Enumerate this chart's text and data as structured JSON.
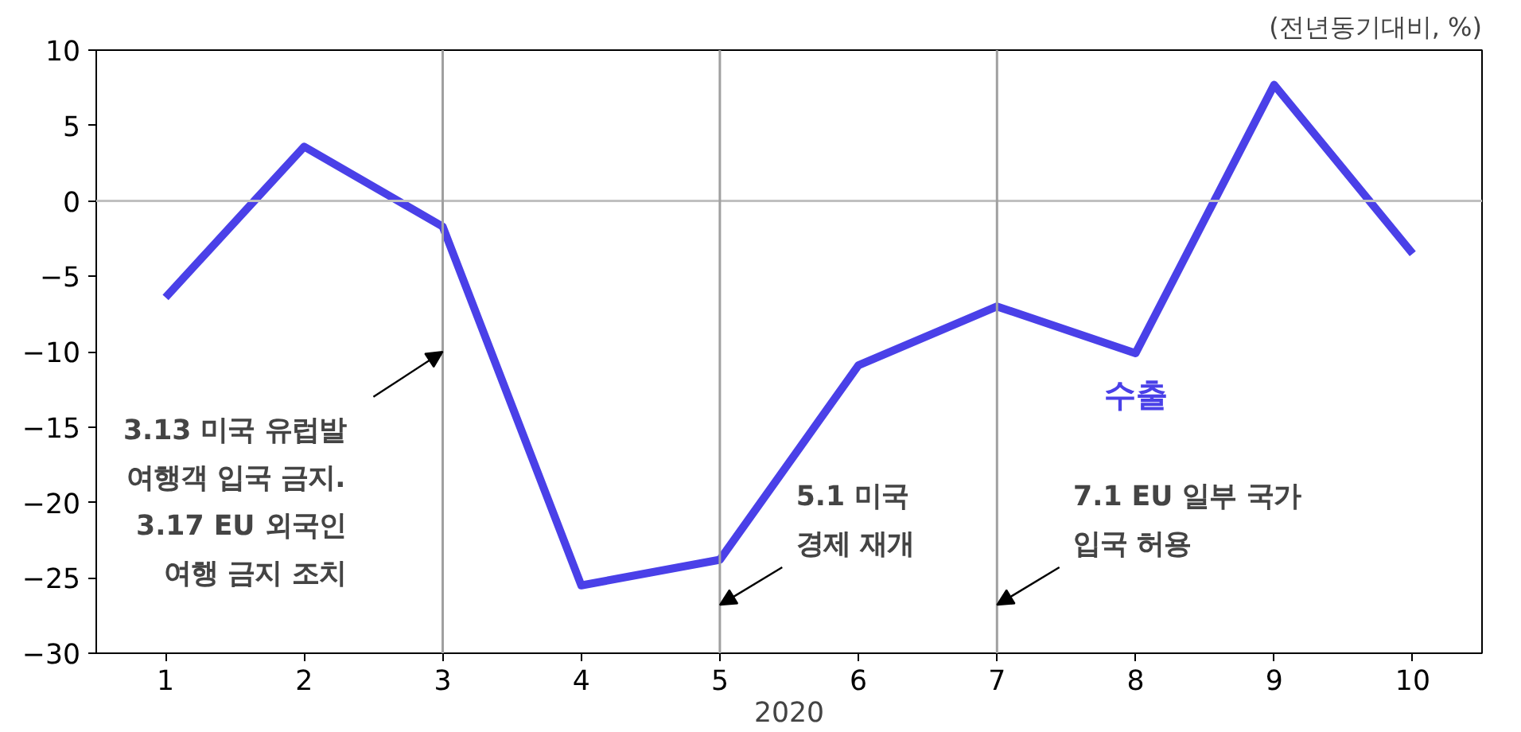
{
  "chart_data": {
    "type": "line",
    "xlabel": "2020",
    "x": [
      1,
      2,
      3,
      4,
      5,
      6,
      7,
      8,
      9,
      10
    ],
    "xlim": [
      0.5,
      10.5
    ],
    "xticks": [
      1,
      2,
      3,
      4,
      5,
      6,
      7,
      8,
      9,
      10
    ],
    "ylim": [
      -30,
      10
    ],
    "yticks": [
      -30,
      -25,
      -20,
      -15,
      -10,
      -5,
      0,
      5,
      10
    ],
    "series": [
      {
        "name": "수출",
        "color": "#4a40e8",
        "values": [
          -6.4,
          3.6,
          -1.7,
          -25.5,
          -23.8,
          -10.9,
          -7.0,
          -10.1,
          7.7,
          -3.5
        ]
      }
    ],
    "ref_lines": [
      {
        "axis": "y",
        "value": 0,
        "color": "#c0c0c0"
      },
      {
        "axis": "x",
        "value": 3,
        "color": "#a0a0a0",
        "label": "3.13 미국 유럽발\n여행객 입국 금지.\n3.17 EU 외국인\n여행 금지 조치"
      },
      {
        "axis": "x",
        "value": 5,
        "color": "#a0a0a0",
        "label": "5.1 미국\n경제 재개"
      },
      {
        "axis": "x",
        "value": 7,
        "color": "#a0a0a0",
        "label": "7.1 EU 일부 국가\n입국 허용"
      }
    ],
    "annotations": [
      "(전년동기대비, %)"
    ],
    "grid": false,
    "marker": "none",
    "line_style": "solid"
  }
}
